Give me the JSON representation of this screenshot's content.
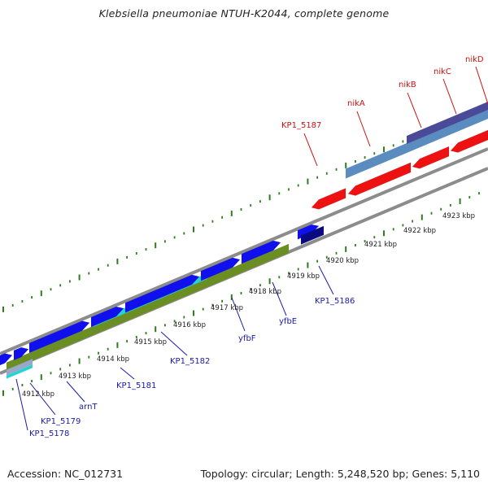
{
  "title": "Klebsiella pneumoniae NTUH-K2044, complete genome",
  "footer": {
    "accession": "Accession: NC_012731",
    "summary": "Topology: circular; Length: 5,248,520 bp; Genes: 5,110"
  },
  "colors": {
    "backbone": "#8c8c8c",
    "tick": "#2e7d1c",
    "forward_cds": "#1010ee",
    "reverse_cds": "#ee1111",
    "dark_cds": "#0a0a80",
    "olive_track": "#6b8e23",
    "cyan_track": "#22d4d4",
    "steel_track": "#5b8cc0",
    "purple_track": "#4a4a98",
    "forward_label": "#1a1aa8",
    "reverse_label": "#cc1111"
  },
  "kbp_labels": [
    "4912 kbp",
    "4913 kbp",
    "4914 kbp",
    "4915 kbp",
    "4916 kbp",
    "4917 kbp",
    "4918 kbp",
    "4919 kbp",
    "4920 kbp",
    "4921 kbp",
    "4922 kbp",
    "4923 kbp"
  ],
  "gene_labels": {
    "kp1_5178": "KP1_5178",
    "kp1_5179": "KP1_5179",
    "arnt": "arnT",
    "kp1_5181": "KP1_5181",
    "kp1_5182": "KP1_5182",
    "yfbf": "yfbF",
    "yfbe": "yfbE",
    "kp1_5186": "KP1_5186",
    "kp1_5187": "KP1_5187",
    "nika": "nikA",
    "nikb": "nikB",
    "nikc": "nikC",
    "nikd": "nikD"
  }
}
